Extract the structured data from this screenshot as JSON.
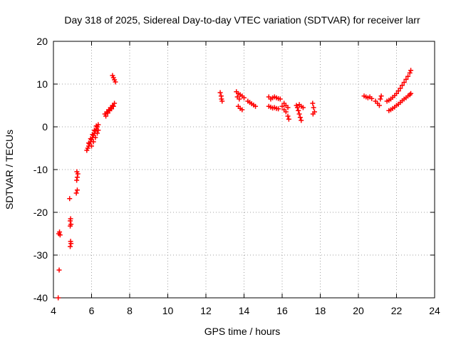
{
  "chart_data": {
    "type": "scatter",
    "title": "Day 318 of 2025, Sidereal Day-to-day VTEC variation (SDTVAR) for receiver larr",
    "xlabel": "GPS time / hours",
    "ylabel": "SDTVAR / TECUs",
    "xlim": [
      4,
      24
    ],
    "ylim": [
      -40,
      20
    ],
    "xticks": [
      4,
      6,
      8,
      10,
      12,
      14,
      16,
      18,
      20,
      22,
      24
    ],
    "yticks": [
      -40,
      -30,
      -20,
      -10,
      0,
      10,
      20
    ],
    "grid": true,
    "marker": "+",
    "color": "#ff0000",
    "series": [
      {
        "name": "SDTVAR",
        "points": [
          [
            4.25,
            -40.0
          ],
          [
            4.3,
            -33.5
          ],
          [
            4.28,
            -25.0
          ],
          [
            4.32,
            -24.6
          ],
          [
            4.35,
            -25.3
          ],
          [
            4.85,
            -16.8
          ],
          [
            4.88,
            -22.0
          ],
          [
            4.9,
            -21.5
          ],
          [
            4.92,
            -22.8
          ],
          [
            4.88,
            -23.2
          ],
          [
            4.9,
            -26.8
          ],
          [
            4.92,
            -27.3
          ],
          [
            4.88,
            -28.0
          ],
          [
            5.2,
            -15.5
          ],
          [
            5.25,
            -14.8
          ],
          [
            5.22,
            -12.5
          ],
          [
            5.25,
            -11.8
          ],
          [
            5.28,
            -11.0
          ],
          [
            5.23,
            -10.5
          ],
          [
            5.75,
            -5.5
          ],
          [
            5.8,
            -5.0
          ],
          [
            5.85,
            -4.5
          ],
          [
            5.9,
            -4.0
          ],
          [
            5.95,
            -3.5
          ],
          [
            6.0,
            -3.0
          ],
          [
            6.05,
            -2.5
          ],
          [
            6.1,
            -2.0
          ],
          [
            6.15,
            -1.5
          ],
          [
            6.2,
            -1.0
          ],
          [
            6.25,
            -0.5
          ],
          [
            6.3,
            0.0
          ],
          [
            6.35,
            0.5
          ],
          [
            5.85,
            -3.8
          ],
          [
            5.95,
            -2.8
          ],
          [
            6.05,
            -1.8
          ],
          [
            6.15,
            -0.8
          ],
          [
            6.25,
            0.2
          ],
          [
            6.0,
            -4.5
          ],
          [
            6.1,
            -3.5
          ],
          [
            6.2,
            -2.5
          ],
          [
            6.3,
            -1.5
          ],
          [
            6.35,
            -0.8
          ],
          [
            6.7,
            3.0
          ],
          [
            6.8,
            3.5
          ],
          [
            6.9,
            4.0
          ],
          [
            7.0,
            4.5
          ],
          [
            7.1,
            5.0
          ],
          [
            7.2,
            5.5
          ],
          [
            6.75,
            2.5
          ],
          [
            6.85,
            3.2
          ],
          [
            6.95,
            3.8
          ],
          [
            7.05,
            4.2
          ],
          [
            7.15,
            4.8
          ],
          [
            7.1,
            12.0
          ],
          [
            7.15,
            11.5
          ],
          [
            7.2,
            11.0
          ],
          [
            7.25,
            10.5
          ],
          [
            12.75,
            8.0
          ],
          [
            12.8,
            7.2
          ],
          [
            12.82,
            6.5
          ],
          [
            12.85,
            6.0
          ],
          [
            13.6,
            8.2
          ],
          [
            13.7,
            7.8
          ],
          [
            13.8,
            7.5
          ],
          [
            13.9,
            7.2
          ],
          [
            14.0,
            6.8
          ],
          [
            13.65,
            7.0
          ],
          [
            13.75,
            6.5
          ],
          [
            13.7,
            4.8
          ],
          [
            13.8,
            4.3
          ],
          [
            13.9,
            4.0
          ],
          [
            14.2,
            6.0
          ],
          [
            14.3,
            5.7
          ],
          [
            14.4,
            5.4
          ],
          [
            14.5,
            5.1
          ],
          [
            14.6,
            4.8
          ],
          [
            15.3,
            7.0
          ],
          [
            15.4,
            6.5
          ],
          [
            15.5,
            6.8
          ],
          [
            15.6,
            7.0
          ],
          [
            15.7,
            6.8
          ],
          [
            15.8,
            6.6
          ],
          [
            15.9,
            6.5
          ],
          [
            15.3,
            4.8
          ],
          [
            15.4,
            4.6
          ],
          [
            15.5,
            4.4
          ],
          [
            15.6,
            4.5
          ],
          [
            15.7,
            4.3
          ],
          [
            15.8,
            4.2
          ],
          [
            16.0,
            4.8
          ],
          [
            16.1,
            4.0
          ],
          [
            16.2,
            3.5
          ],
          [
            16.3,
            2.5
          ],
          [
            16.35,
            1.8
          ],
          [
            16.1,
            5.5
          ],
          [
            16.2,
            5.0
          ],
          [
            16.3,
            4.5
          ],
          [
            16.75,
            5.0
          ],
          [
            16.8,
            4.5
          ],
          [
            16.85,
            3.8
          ],
          [
            16.9,
            3.0
          ],
          [
            16.95,
            2.2
          ],
          [
            17.0,
            1.5
          ],
          [
            16.9,
            5.2
          ],
          [
            17.0,
            4.8
          ],
          [
            17.1,
            4.5
          ],
          [
            17.6,
            5.5
          ],
          [
            17.65,
            4.5
          ],
          [
            17.7,
            3.5
          ],
          [
            17.62,
            3.0
          ],
          [
            20.3,
            7.2
          ],
          [
            20.4,
            7.0
          ],
          [
            20.5,
            6.8
          ],
          [
            20.6,
            7.0
          ],
          [
            20.7,
            6.6
          ],
          [
            20.9,
            6.0
          ],
          [
            21.0,
            5.5
          ],
          [
            21.1,
            5.0
          ],
          [
            21.2,
            7.2
          ],
          [
            21.15,
            6.5
          ],
          [
            21.5,
            6.0
          ],
          [
            21.6,
            6.2
          ],
          [
            21.7,
            6.5
          ],
          [
            21.8,
            6.9
          ],
          [
            21.9,
            7.3
          ],
          [
            22.0,
            7.8
          ],
          [
            22.1,
            8.4
          ],
          [
            22.2,
            9.0
          ],
          [
            22.3,
            9.7
          ],
          [
            22.4,
            10.4
          ],
          [
            22.5,
            11.1
          ],
          [
            22.6,
            11.8
          ],
          [
            22.7,
            12.6
          ],
          [
            22.75,
            13.2
          ],
          [
            21.6,
            3.8
          ],
          [
            21.7,
            4.0
          ],
          [
            21.8,
            4.3
          ],
          [
            21.9,
            4.6
          ],
          [
            22.0,
            5.0
          ],
          [
            22.1,
            5.3
          ],
          [
            22.2,
            5.7
          ],
          [
            22.3,
            6.1
          ],
          [
            22.4,
            6.5
          ],
          [
            22.5,
            6.8
          ],
          [
            22.6,
            7.2
          ],
          [
            22.7,
            7.5
          ],
          [
            22.75,
            7.8
          ]
        ]
      }
    ]
  }
}
